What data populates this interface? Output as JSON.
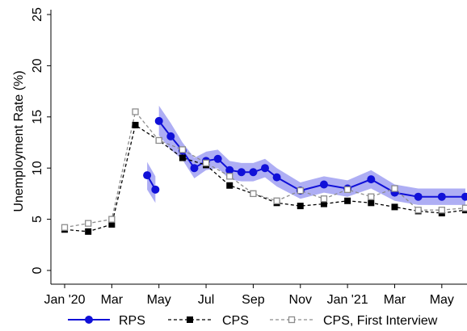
{
  "chart_data": {
    "type": "line",
    "ylabel": "Unemployment Rate (%)",
    "ylim": [
      0,
      25
    ],
    "yticks": [
      0,
      5,
      10,
      15,
      20,
      25
    ],
    "xlim": [
      0,
      17
    ],
    "xticks": [
      {
        "pos": 0,
        "label": "Jan '20"
      },
      {
        "pos": 2,
        "label": "Mar"
      },
      {
        "pos": 4,
        "label": "May"
      },
      {
        "pos": 6,
        "label": "Jul"
      },
      {
        "pos": 8,
        "label": "Sep"
      },
      {
        "pos": 10,
        "label": "Nov"
      },
      {
        "pos": 12,
        "label": "Jan '21"
      },
      {
        "pos": 14,
        "label": "Mar"
      },
      {
        "pos": 16,
        "label": "May"
      }
    ],
    "legend_position": "bottom",
    "grid": false,
    "series": [
      {
        "name": "RPS",
        "color": "#1010d8",
        "band_color": "#8c8cf0",
        "style": "solid",
        "marker": "circle",
        "points": [
          {
            "x": 3.5,
            "y": 9.3,
            "lo": 7.9,
            "hi": 10.6
          },
          {
            "x": 3.85,
            "y": 7.9,
            "lo": 6.6,
            "hi": 9.2
          },
          {
            "x": 4.0,
            "y": 14.6,
            "lo": 13.2,
            "hi": 16.1
          },
          {
            "x": 4.5,
            "y": 13.1,
            "lo": 11.8,
            "hi": 14.4
          },
          {
            "x": 5.0,
            "y": 11.7,
            "lo": 10.8,
            "hi": 12.5
          },
          {
            "x": 5.5,
            "y": 10.0,
            "lo": 9.0,
            "hi": 11.0
          },
          {
            "x": 6.0,
            "y": 10.7,
            "lo": 9.8,
            "hi": 11.6
          },
          {
            "x": 6.5,
            "y": 10.9,
            "lo": 10.0,
            "hi": 11.8
          },
          {
            "x": 7.0,
            "y": 9.8,
            "lo": 8.9,
            "hi": 10.7
          },
          {
            "x": 7.5,
            "y": 9.6,
            "lo": 8.7,
            "hi": 10.5
          },
          {
            "x": 8.0,
            "y": 9.6,
            "lo": 8.7,
            "hi": 10.5
          },
          {
            "x": 8.5,
            "y": 10.0,
            "lo": 9.1,
            "hi": 10.9
          },
          {
            "x": 9.0,
            "y": 9.1,
            "lo": 8.2,
            "hi": 10.0
          },
          {
            "x": 10.0,
            "y": 7.8,
            "lo": 7.0,
            "hi": 8.6
          },
          {
            "x": 11.0,
            "y": 8.4,
            "lo": 7.6,
            "hi": 9.2
          },
          {
            "x": 12.0,
            "y": 8.0,
            "lo": 7.2,
            "hi": 8.8
          },
          {
            "x": 13.0,
            "y": 8.9,
            "lo": 8.0,
            "hi": 9.8
          },
          {
            "x": 14.0,
            "y": 7.6,
            "lo": 6.8,
            "hi": 8.4
          },
          {
            "x": 15.0,
            "y": 7.2,
            "lo": 6.4,
            "hi": 8.0
          },
          {
            "x": 16.0,
            "y": 7.2,
            "lo": 6.4,
            "hi": 8.0
          },
          {
            "x": 17.0,
            "y": 7.2,
            "lo": 6.4,
            "hi": 8.0
          }
        ]
      },
      {
        "name": "CPS",
        "color": "#000000",
        "style": "dashed",
        "marker": "square-filled",
        "x": [
          0,
          1,
          2,
          3,
          4,
          5,
          6,
          7,
          8,
          9,
          10,
          11,
          12,
          13,
          14,
          15,
          16,
          17
        ],
        "y": [
          4.0,
          3.8,
          4.5,
          14.2,
          12.7,
          11.0,
          10.3,
          8.3,
          7.5,
          6.6,
          6.3,
          6.5,
          6.8,
          6.6,
          6.2,
          5.8,
          5.6,
          5.9
        ]
      },
      {
        "name": "CPS, First Interview",
        "color": "#8c8c8c",
        "style": "dashed",
        "marker": "square-open",
        "x": [
          0,
          1,
          2,
          3,
          4,
          5,
          6,
          7,
          8,
          9,
          10,
          11,
          12,
          13,
          14,
          15,
          16,
          17
        ],
        "y": [
          4.2,
          4.6,
          5.0,
          15.5,
          12.7,
          11.8,
          10.5,
          9.2,
          7.5,
          6.8,
          7.8,
          7.0,
          7.9,
          7.2,
          8.0,
          5.9,
          5.9,
          6.1
        ]
      }
    ]
  }
}
